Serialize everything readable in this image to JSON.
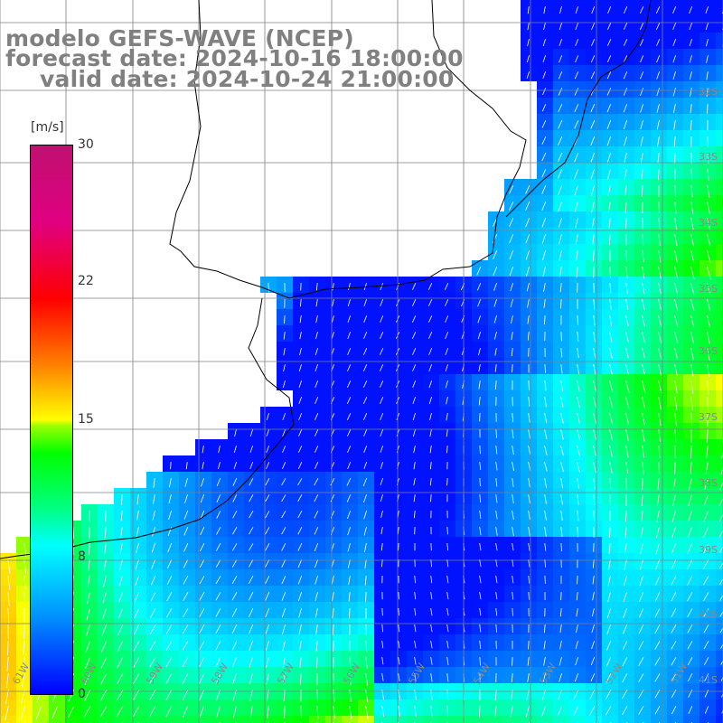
{
  "title": {
    "line1": "modelo GEFS-WAVE (NCEP)",
    "line2": "forecast date: 2024-10-16 18:00:00",
    "line3": "valid date: 2024-10-24 21:00:00"
  },
  "colorbar": {
    "unit": "[m/s]",
    "ticks": [
      "30",
      "22",
      "15",
      "8",
      "0"
    ],
    "tick_values": [
      30,
      22,
      15,
      8,
      0
    ],
    "min": 0,
    "max": 30,
    "colors": [
      "#0000ff",
      "#0090ff",
      "#00ffff",
      "#00ff00",
      "#ffff00",
      "#ff8000",
      "#ff0000",
      "#c01070"
    ]
  },
  "lat_labels": [
    "32S",
    "33S",
    "34S",
    "35S",
    "36S",
    "37S",
    "38S",
    "39S",
    "40S",
    "41S"
  ],
  "lon_labels": [
    "61W",
    "60W",
    "59W",
    "58W",
    "57W",
    "56W",
    "55W",
    "54W",
    "53W",
    "52W",
    "51W"
  ],
  "map": {
    "land_color": "#ffffff",
    "coast_color": "#000000",
    "grid_color": "#808080",
    "arrow_color": "#ffffff"
  }
}
